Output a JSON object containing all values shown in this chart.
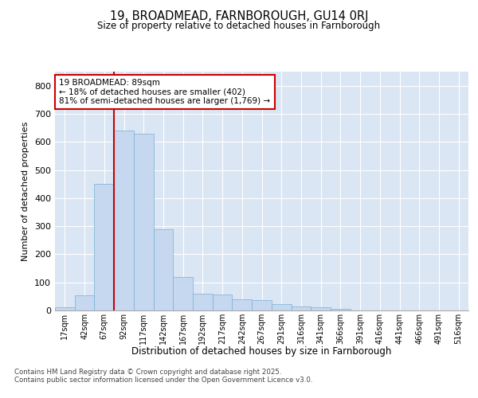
{
  "title1": "19, BROADMEAD, FARNBOROUGH, GU14 0RJ",
  "title2": "Size of property relative to detached houses in Farnborough",
  "xlabel": "Distribution of detached houses by size in Farnborough",
  "ylabel": "Number of detached properties",
  "bar_labels": [
    "17sqm",
    "42sqm",
    "67sqm",
    "92sqm",
    "117sqm",
    "142sqm",
    "167sqm",
    "192sqm",
    "217sqm",
    "242sqm",
    "267sqm",
    "291sqm",
    "316sqm",
    "341sqm",
    "366sqm",
    "391sqm",
    "416sqm",
    "441sqm",
    "466sqm",
    "491sqm",
    "516sqm"
  ],
  "bar_values": [
    10,
    55,
    450,
    640,
    630,
    290,
    120,
    60,
    58,
    40,
    38,
    22,
    15,
    10,
    6,
    1,
    1,
    1,
    1,
    1,
    1
  ],
  "bar_color": "#c5d8f0",
  "bar_edge_color": "#7aafd4",
  "background_color": "#dae6f3",
  "grid_color": "#ffffff",
  "vline_color": "#cc0000",
  "vline_pos": 3,
  "annotation_text": "19 BROADMEAD: 89sqm\n← 18% of detached houses are smaller (402)\n81% of semi-detached houses are larger (1,769) →",
  "annotation_box_facecolor": "#ffffff",
  "annotation_box_edgecolor": "#cc0000",
  "footer_text": "Contains HM Land Registry data © Crown copyright and database right 2025.\nContains public sector information licensed under the Open Government Licence v3.0.",
  "fig_facecolor": "#ffffff",
  "ylim": [
    0,
    850
  ],
  "yticks": [
    0,
    100,
    200,
    300,
    400,
    500,
    600,
    700,
    800
  ]
}
